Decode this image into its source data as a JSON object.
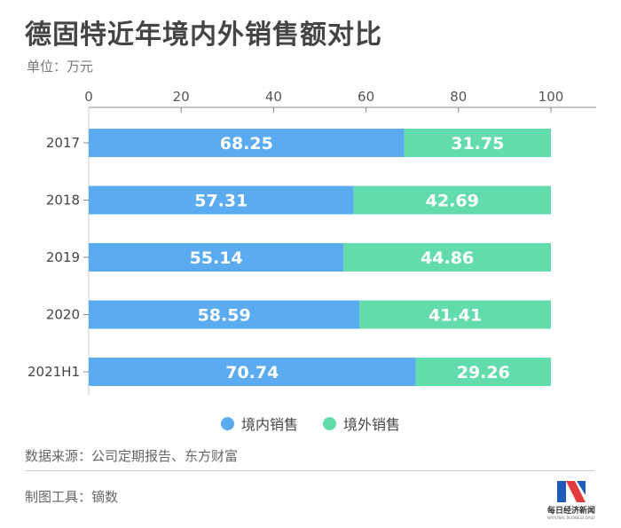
{
  "title": "德固特近年境内外销售额对比",
  "unit": "单位：万元",
  "chart_data": {
    "type": "bar",
    "orientation": "horizontal",
    "stacked": true,
    "categories": [
      "2017",
      "2018",
      "2019",
      "2020",
      "2021H1"
    ],
    "series": [
      {
        "name": "境内销售",
        "color": "#5aabf0",
        "values": [
          68.25,
          57.31,
          55.14,
          58.59,
          70.74
        ]
      },
      {
        "name": "境外销售",
        "color": "#63dcab",
        "values": [
          31.75,
          42.69,
          44.86,
          41.41,
          29.26
        ]
      }
    ],
    "xlim": [
      0,
      100
    ],
    "xticks": [
      "0",
      "20",
      "40",
      "60",
      "80",
      "100"
    ],
    "legend_position": "bottom"
  },
  "source": "数据来源：公司定期报告、东方财富",
  "credit": "制图工具：镝数",
  "logo": {
    "text": "每日经济新闻",
    "subtext": "NATIONAL BUSINESS DAILY",
    "colors": [
      "#1f5bb8",
      "#e23c3c"
    ]
  }
}
